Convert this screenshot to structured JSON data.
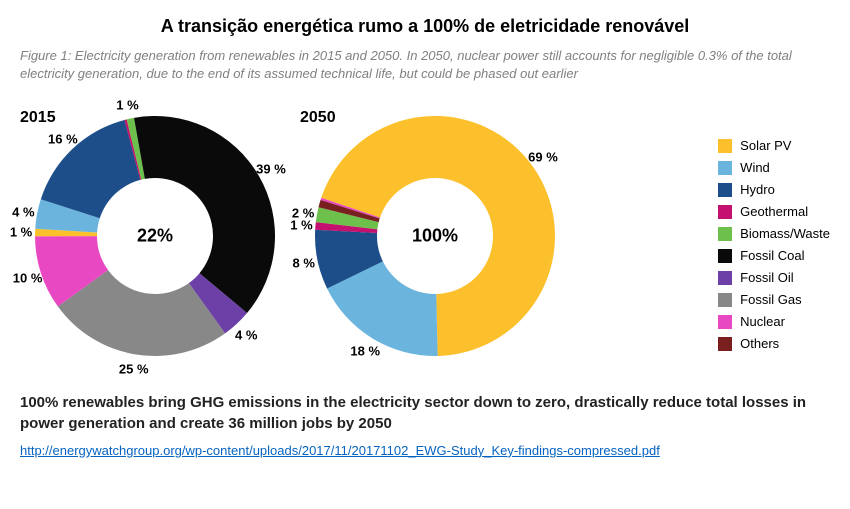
{
  "title": "A transição energética rumo a 100% de eletricidade renovável",
  "caption": "Figure 1: Electricity generation from renewables in 2015 and 2050. In 2050, nuclear power still accounts for negligible 0.3% of the total electricity generation, due to the end of its assumed technical life, but could be phased out earlier",
  "legend_items": [
    {
      "label": "Solar PV",
      "color": "#fcc02c"
    },
    {
      "label": "Wind",
      "color": "#6bb4dd"
    },
    {
      "label": "Hydro",
      "color": "#1d4e89"
    },
    {
      "label": "Geothermal",
      "color": "#c4106e"
    },
    {
      "label": "Biomass/Waste",
      "color": "#6ec04d"
    },
    {
      "label": "Fossil Coal",
      "color": "#0a0a0a"
    },
    {
      "label": "Fossil Oil",
      "color": "#6c40a7"
    },
    {
      "label": "Fossil Gas",
      "color": "#888888"
    },
    {
      "label": "Nuclear",
      "color": "#e948c3"
    },
    {
      "label": "Others",
      "color": "#7a1f1f"
    }
  ],
  "chart_2015": {
    "type": "donut",
    "year_label": "2015",
    "center_label": "22%",
    "size": 270,
    "outer_r": 120,
    "inner_r": 58,
    "start_angle": -126,
    "background_color": "#ffffff",
    "label_fontsize": 13,
    "slices": [
      {
        "key": "nuclear",
        "value": 10,
        "color": "#e948c3",
        "label": "10 %"
      },
      {
        "key": "solar",
        "value": 1,
        "color": "#fcc02c",
        "label": "1 %"
      },
      {
        "key": "wind",
        "value": 4,
        "color": "#6bb4dd",
        "label": "4 %"
      },
      {
        "key": "hydro",
        "value": 16,
        "color": "#1d4e89",
        "label": "16 %"
      },
      {
        "key": "geothermal",
        "value": 0.3,
        "color": "#c4106e",
        "label": ""
      },
      {
        "key": "biomass",
        "value": 1,
        "color": "#6ec04d",
        "label": "1 %"
      },
      {
        "key": "coal",
        "value": 39,
        "color": "#0a0a0a",
        "label": "39 %"
      },
      {
        "key": "oil",
        "value": 4,
        "color": "#6c40a7",
        "label": "4 %"
      },
      {
        "key": "gas",
        "value": 25,
        "color": "#888888",
        "label": "25 %"
      }
    ]
  },
  "chart_2050": {
    "type": "donut",
    "year_label": "2050",
    "center_label": "100%",
    "size": 270,
    "outer_r": 120,
    "inner_r": 58,
    "start_angle": -116,
    "background_color": "#ffffff",
    "label_fontsize": 13,
    "slices": [
      {
        "key": "hydro",
        "value": 8,
        "color": "#1d4e89",
        "label": "8 %"
      },
      {
        "key": "geothermal",
        "value": 1,
        "color": "#c4106e",
        "label": "1 %"
      },
      {
        "key": "biomass",
        "value": 2,
        "color": "#6ec04d",
        "label": "2 %"
      },
      {
        "key": "others",
        "value": 1,
        "color": "#7a1f1f",
        "label": ""
      },
      {
        "key": "nuclear",
        "value": 0.3,
        "color": "#e948c3",
        "label": ""
      },
      {
        "key": "solar",
        "value": 69,
        "color": "#fcc02c",
        "label": "69 %"
      },
      {
        "key": "wind",
        "value": 18,
        "color": "#6bb4dd",
        "label": "18 %"
      }
    ]
  },
  "footer_text": "100% renewables bring GHG emissions in the electricity sector down to zero, drastically reduce total losses in power generation and create 36 million jobs by 2050",
  "source_url": "http://energywatchgroup.org/wp-content/uploads/2017/11/20171102_EWG-Study_Key-findings-compressed.pdf"
}
